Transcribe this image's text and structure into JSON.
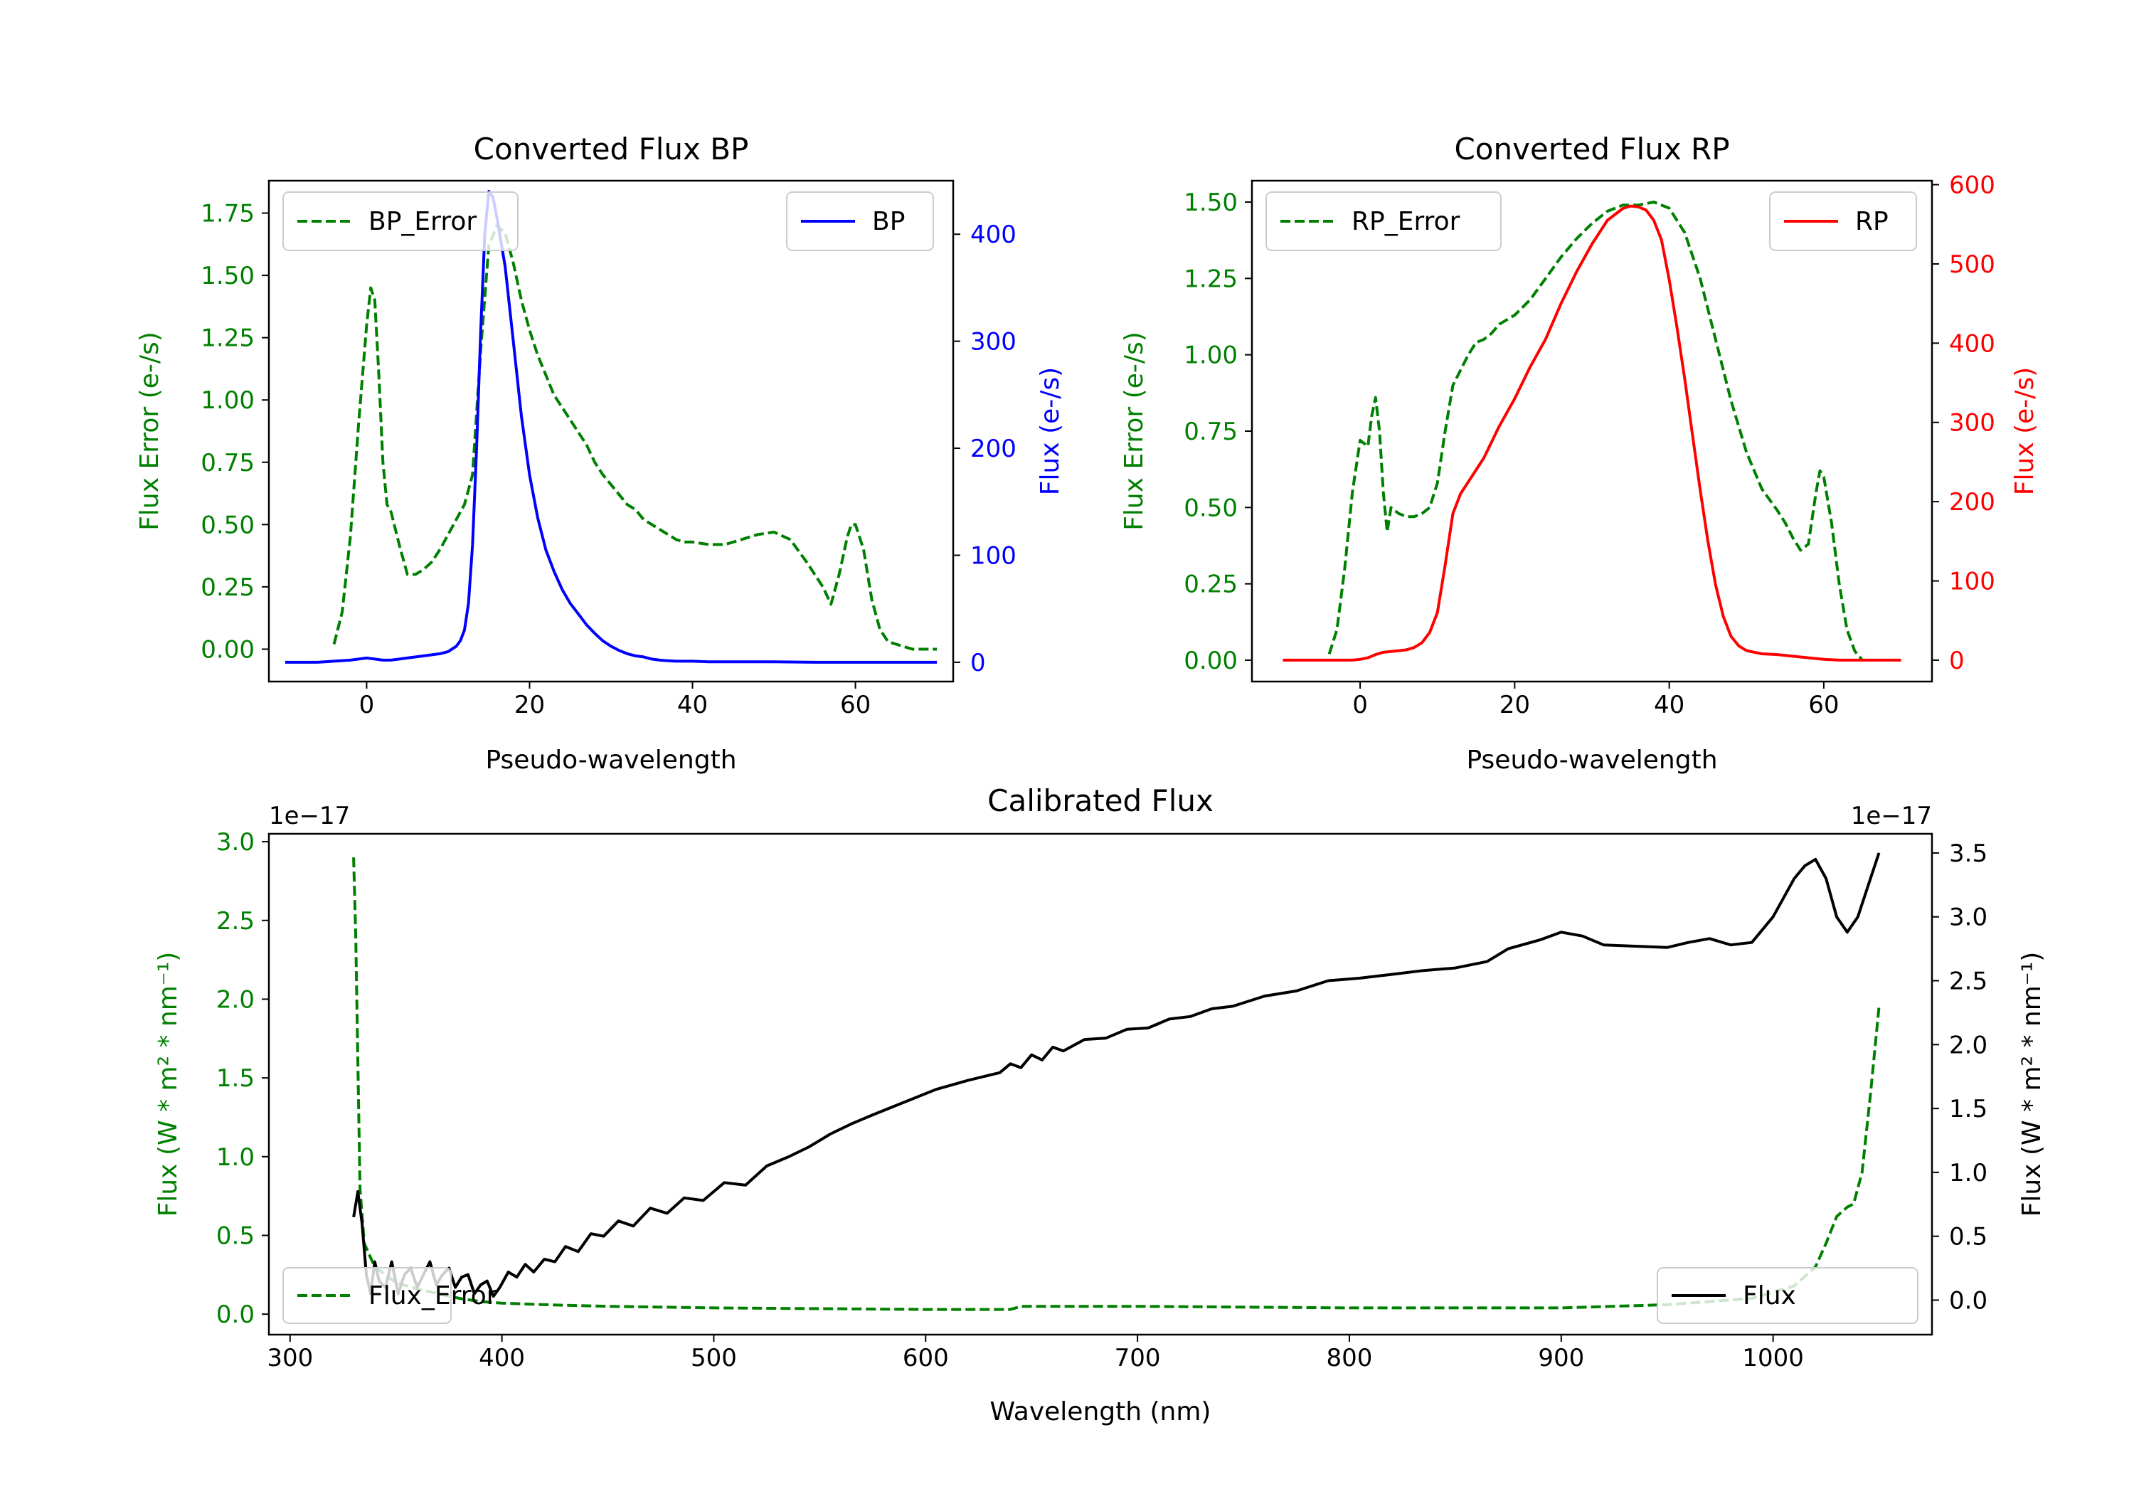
{
  "colors": {
    "error": "#008000",
    "bp": "#0000ff",
    "rp": "#ff0000",
    "flux": "#000000",
    "axis": "#000000",
    "background": "#ffffff"
  },
  "chart_data": [
    {
      "id": "bp",
      "type": "line",
      "title": "Converted Flux BP",
      "xlabel": "Pseudo-wavelength",
      "ylabel_left": "Flux Error (e-/s)",
      "ylabel_right": "Flux (e-/s)",
      "xlim": [
        -12,
        72
      ],
      "ylim_left": [
        -0.13,
        1.88
      ],
      "ylim_right": [
        -18,
        450
      ],
      "xticks": [
        0,
        20,
        40,
        60
      ],
      "xtick_labels": [
        "0",
        "20",
        "40",
        "60"
      ],
      "yticks_left": [
        0,
        0.25,
        0.5,
        0.75,
        1.0,
        1.25,
        1.5,
        1.75
      ],
      "ytick_labels_left": [
        "0.00",
        "0.25",
        "0.50",
        "0.75",
        "1.00",
        "1.25",
        "1.50",
        "1.75"
      ],
      "yticks_right": [
        0,
        100,
        200,
        300,
        400
      ],
      "ytick_labels_right": [
        "0",
        "100",
        "200",
        "300",
        "400"
      ],
      "legend_left": "top-left",
      "legend_right": "top-right",
      "series": [
        {
          "name": "BP_Error",
          "axis": "left",
          "style": "dashed",
          "color_key": "error",
          "x": [
            -4,
            -3,
            -2,
            -1,
            0,
            0.5,
            1,
            1.5,
            2,
            2.5,
            3,
            4,
            5,
            6,
            7,
            8,
            9,
            10,
            11,
            12,
            13,
            14,
            15,
            16,
            17,
            18,
            19,
            20,
            21,
            22,
            23,
            24,
            25,
            26,
            27,
            28,
            29,
            30,
            31,
            32,
            33,
            34,
            35,
            36,
            37,
            38,
            39,
            40,
            42,
            44,
            46,
            48,
            50,
            52,
            54,
            56,
            57,
            58,
            59,
            59.5,
            60,
            61,
            62,
            63,
            64,
            65,
            66,
            67,
            68,
            69,
            70
          ],
          "values": [
            0.02,
            0.15,
            0.45,
            0.9,
            1.3,
            1.45,
            1.4,
            1.1,
            0.75,
            0.58,
            0.55,
            0.42,
            0.3,
            0.3,
            0.32,
            0.35,
            0.4,
            0.46,
            0.52,
            0.58,
            0.7,
            1.2,
            1.62,
            1.7,
            1.67,
            1.55,
            1.4,
            1.28,
            1.18,
            1.1,
            1.02,
            0.97,
            0.92,
            0.87,
            0.82,
            0.75,
            0.7,
            0.66,
            0.62,
            0.58,
            0.56,
            0.52,
            0.5,
            0.48,
            0.46,
            0.44,
            0.43,
            0.43,
            0.42,
            0.42,
            0.44,
            0.46,
            0.47,
            0.44,
            0.35,
            0.25,
            0.18,
            0.3,
            0.45,
            0.5,
            0.5,
            0.4,
            0.2,
            0.08,
            0.03,
            0.02,
            0.01,
            0.0,
            0.0,
            0.0,
            0.0
          ]
        },
        {
          "name": "BP",
          "axis": "right",
          "style": "solid",
          "color_key": "bp",
          "x": [
            -10,
            -8,
            -6,
            -4,
            -2,
            0,
            1,
            2,
            3,
            4,
            5,
            6,
            7,
            8,
            9,
            10,
            11,
            11.5,
            12,
            12.5,
            13,
            13.5,
            14,
            14.5,
            15,
            15.5,
            16,
            17,
            18,
            19,
            20,
            21,
            22,
            23,
            24,
            25,
            26,
            27,
            28,
            29,
            30,
            31,
            32,
            33,
            34,
            35,
            36,
            37,
            38,
            40,
            42,
            45,
            50,
            55,
            60,
            65,
            70
          ],
          "values": [
            0,
            0,
            0,
            1,
            2,
            4,
            3,
            2,
            2,
            3,
            4,
            5,
            6,
            7,
            8,
            10,
            15,
            20,
            30,
            55,
            110,
            200,
            310,
            400,
            440,
            435,
            415,
            370,
            300,
            230,
            175,
            135,
            105,
            85,
            68,
            55,
            45,
            35,
            27,
            20,
            15,
            11,
            8,
            6,
            5,
            3,
            2,
            1.5,
            1,
            1,
            0.5,
            0.5,
            0.5,
            0,
            0,
            0,
            0
          ]
        }
      ]
    },
    {
      "id": "rp",
      "type": "line",
      "title": "Converted Flux RP",
      "xlabel": "Pseudo-wavelength",
      "ylabel_left": "Flux Error (e-/s)",
      "ylabel_right": "Flux (e-/s)",
      "xlim": [
        -14,
        74
      ],
      "ylim_left": [
        -0.07,
        1.57
      ],
      "ylim_right": [
        -27,
        605
      ],
      "xticks": [
        0,
        20,
        40,
        60
      ],
      "xtick_labels": [
        "0",
        "20",
        "40",
        "60"
      ],
      "yticks_left": [
        0,
        0.25,
        0.5,
        0.75,
        1.0,
        1.25,
        1.5
      ],
      "ytick_labels_left": [
        "0.00",
        "0.25",
        "0.50",
        "0.75",
        "1.00",
        "1.25",
        "1.50"
      ],
      "yticks_right": [
        0,
        100,
        200,
        300,
        400,
        500,
        600
      ],
      "ytick_labels_right": [
        "0",
        "100",
        "200",
        "300",
        "400",
        "500",
        "600"
      ],
      "legend_left": "top-left",
      "legend_right": "top-right",
      "series": [
        {
          "name": "RP_Error",
          "axis": "left",
          "style": "dashed",
          "color_key": "error",
          "x": [
            -4,
            -3,
            -2,
            -1,
            0,
            1,
            1.5,
            2,
            2.5,
            3,
            3.5,
            4,
            5,
            6,
            7,
            8,
            9,
            10,
            11,
            12,
            13,
            14,
            15,
            16,
            17,
            18,
            20,
            22,
            24,
            26,
            28,
            30,
            32,
            34,
            36,
            38,
            40,
            42,
            44,
            46,
            48,
            50,
            52,
            54,
            55,
            56,
            57,
            58,
            59,
            59.5,
            60,
            61,
            62,
            63,
            64,
            65
          ],
          "values": [
            0.02,
            0.1,
            0.3,
            0.55,
            0.72,
            0.7,
            0.8,
            0.86,
            0.75,
            0.55,
            0.42,
            0.5,
            0.48,
            0.47,
            0.47,
            0.48,
            0.5,
            0.58,
            0.75,
            0.9,
            0.95,
            1.0,
            1.04,
            1.05,
            1.07,
            1.1,
            1.13,
            1.18,
            1.25,
            1.32,
            1.38,
            1.43,
            1.47,
            1.49,
            1.49,
            1.5,
            1.48,
            1.4,
            1.25,
            1.05,
            0.85,
            0.68,
            0.56,
            0.49,
            0.45,
            0.4,
            0.36,
            0.38,
            0.55,
            0.62,
            0.6,
            0.45,
            0.25,
            0.1,
            0.03,
            0.0
          ]
        },
        {
          "name": "RP",
          "axis": "right",
          "style": "solid",
          "color_key": "rp",
          "x": [
            -10,
            -6,
            -3,
            -1,
            0,
            1,
            2,
            3,
            4,
            5,
            6,
            7,
            8,
            9,
            10,
            11,
            12,
            13,
            14,
            16,
            18,
            20,
            22,
            24,
            26,
            28,
            30,
            32,
            34,
            35,
            36,
            37,
            38,
            39,
            40,
            41,
            42,
            43,
            44,
            45,
            46,
            47,
            48,
            49,
            50,
            51,
            52,
            54,
            56,
            58,
            60,
            62,
            66,
            70
          ],
          "values": [
            0,
            0,
            0,
            0,
            1,
            3,
            7,
            10,
            11,
            12,
            13,
            16,
            22,
            35,
            60,
            120,
            185,
            210,
            225,
            255,
            295,
            330,
            370,
            405,
            450,
            490,
            525,
            555,
            570,
            573,
            572,
            568,
            555,
            530,
            480,
            420,
            355,
            285,
            215,
            150,
            95,
            55,
            30,
            18,
            12,
            10,
            8,
            7,
            5,
            3,
            1,
            0,
            0,
            0
          ]
        }
      ]
    },
    {
      "id": "calibrated",
      "type": "line",
      "title": "Calibrated Flux",
      "xlabel": "Wavelength (nm)",
      "ylabel_left": "Flux (W * m² * nm⁻¹)",
      "ylabel_right": "Flux (W * m² * nm⁻¹)",
      "offset_left": "1e−17",
      "offset_right": "1e−17",
      "xlim": [
        290,
        1075
      ],
      "ylim_left": [
        -0.13,
        3.05
      ],
      "ylim_right": [
        -0.27,
        3.65
      ],
      "xticks": [
        300,
        400,
        500,
        600,
        700,
        800,
        900,
        1000
      ],
      "xtick_labels": [
        "300",
        "400",
        "500",
        "600",
        "700",
        "800",
        "900",
        "1000"
      ],
      "yticks_left": [
        0,
        0.5,
        1.0,
        1.5,
        2.0,
        2.5,
        3.0
      ],
      "ytick_labels_left": [
        "0.0",
        "0.5",
        "1.0",
        "1.5",
        "2.0",
        "2.5",
        "3.0"
      ],
      "yticks_right": [
        0,
        0.5,
        1.0,
        1.5,
        2.0,
        2.5,
        3.0,
        3.5
      ],
      "ytick_labels_right": [
        "0.0",
        "0.5",
        "1.0",
        "1.5",
        "2.0",
        "2.5",
        "3.0",
        "3.5"
      ],
      "legend_left": "bottom-left",
      "legend_right": "bottom-right",
      "series": [
        {
          "name": "Flux_Error",
          "axis": "left",
          "style": "dashed",
          "color_key": "error",
          "x": [
            330,
            331,
            332,
            333,
            335,
            340,
            350,
            360,
            370,
            380,
            390,
            400,
            420,
            450,
            500,
            550,
            600,
            640,
            645,
            700,
            800,
            900,
            950,
            990,
            1010,
            1020,
            1025,
            1030,
            1035,
            1038,
            1042,
            1046,
            1050
          ],
          "values": [
            2.9,
            2.4,
            1.6,
            0.8,
            0.45,
            0.3,
            0.2,
            0.16,
            0.13,
            0.1,
            0.08,
            0.07,
            0.06,
            0.05,
            0.04,
            0.035,
            0.03,
            0.03,
            0.05,
            0.05,
            0.04,
            0.04,
            0.06,
            0.1,
            0.18,
            0.3,
            0.45,
            0.62,
            0.68,
            0.7,
            0.9,
            1.4,
            1.95
          ]
        },
        {
          "name": "Flux",
          "axis": "right",
          "style": "solid",
          "color_key": "flux",
          "x": [
            330,
            332,
            334,
            336,
            338,
            340,
            342,
            345,
            348,
            351,
            354,
            357,
            360,
            363,
            366,
            369,
            372,
            375,
            378,
            381,
            384,
            387,
            390,
            393,
            396,
            399,
            403,
            407,
            411,
            415,
            420,
            425,
            430,
            436,
            442,
            448,
            455,
            462,
            470,
            478,
            486,
            495,
            505,
            515,
            525,
            535,
            545,
            555,
            565,
            575,
            590,
            605,
            620,
            635,
            640,
            645,
            650,
            655,
            660,
            665,
            675,
            685,
            695,
            705,
            715,
            725,
            735,
            745,
            760,
            775,
            790,
            805,
            820,
            835,
            850,
            865,
            875,
            890,
            900,
            910,
            920,
            935,
            950,
            960,
            970,
            980,
            990,
            1000,
            1005,
            1010,
            1015,
            1020,
            1025,
            1030,
            1035,
            1040,
            1045,
            1050
          ],
          "values": [
            0.65,
            0.85,
            0.6,
            0.2,
            0.05,
            0.3,
            0.15,
            0.1,
            0.3,
            0.05,
            0.2,
            0.25,
            0.1,
            0.2,
            0.3,
            0.12,
            0.2,
            0.25,
            0.1,
            0.18,
            0.2,
            0.05,
            0.12,
            0.15,
            0.03,
            0.1,
            0.22,
            0.18,
            0.28,
            0.22,
            0.32,
            0.3,
            0.42,
            0.38,
            0.52,
            0.5,
            0.62,
            0.58,
            0.72,
            0.68,
            0.8,
            0.78,
            0.92,
            0.9,
            1.05,
            1.12,
            1.2,
            1.3,
            1.38,
            1.45,
            1.55,
            1.65,
            1.72,
            1.78,
            1.85,
            1.82,
            1.92,
            1.88,
            1.98,
            1.95,
            2.04,
            2.05,
            2.12,
            2.13,
            2.2,
            2.22,
            2.28,
            2.3,
            2.38,
            2.42,
            2.5,
            2.52,
            2.55,
            2.58,
            2.6,
            2.65,
            2.75,
            2.82,
            2.88,
            2.85,
            2.78,
            2.77,
            2.76,
            2.8,
            2.83,
            2.78,
            2.8,
            3.0,
            3.15,
            3.3,
            3.4,
            3.45,
            3.3,
            3.0,
            2.88,
            3.0,
            3.25,
            3.5
          ]
        }
      ]
    }
  ]
}
